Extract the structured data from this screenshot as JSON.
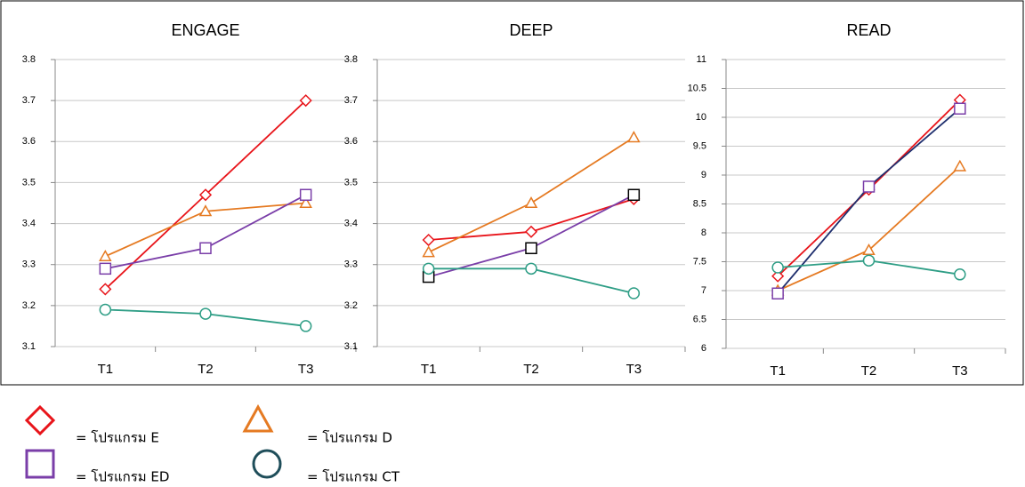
{
  "chart_data": [
    {
      "type": "line",
      "title": "ENGAGE",
      "categories": [
        "T1",
        "T2",
        "T3"
      ],
      "ylim": [
        3.1,
        3.8
      ],
      "yticks": [
        3.1,
        3.2,
        3.3,
        3.4,
        3.5,
        3.6,
        3.7,
        3.8
      ],
      "grid": true,
      "series": [
        {
          "marker": "diamond",
          "color": "#e8141a",
          "values": [
            3.24,
            3.47,
            3.7
          ]
        },
        {
          "marker": "triangle",
          "color": "#e57a22",
          "values": [
            3.32,
            3.43,
            3.45
          ]
        },
        {
          "marker": "square",
          "color": "#7a3ea8",
          "values": [
            3.29,
            3.34,
            3.47
          ]
        },
        {
          "marker": "circle",
          "color": "#2f9e86",
          "values": [
            3.19,
            3.18,
            3.15
          ]
        }
      ]
    },
    {
      "type": "line",
      "title": "DEEP",
      "categories": [
        "T1",
        "T2",
        "T3"
      ],
      "ylim": [
        3.1,
        3.8
      ],
      "yticks": [
        3.1,
        3.2,
        3.3,
        3.4,
        3.5,
        3.6,
        3.7,
        3.8
      ],
      "grid": true,
      "series": [
        {
          "marker": "diamond",
          "color": "#e8141a",
          "values": [
            3.36,
            3.38,
            3.46
          ]
        },
        {
          "marker": "triangle",
          "color": "#e57a22",
          "values": [
            3.33,
            3.45,
            3.61
          ]
        },
        {
          "marker": "square",
          "color": "#7a3ea8",
          "marker_color": "#000000",
          "values": [
            3.27,
            3.34,
            3.47
          ]
        },
        {
          "marker": "circle",
          "color": "#2f9e86",
          "values": [
            3.29,
            3.29,
            3.23
          ]
        }
      ]
    },
    {
      "type": "line",
      "title": "READ",
      "categories": [
        "T1",
        "T2",
        "T3"
      ],
      "ylim": [
        6,
        11
      ],
      "yticks": [
        6,
        6.5,
        7,
        7.5,
        8,
        8.5,
        9,
        9.5,
        10,
        10.5,
        11
      ],
      "grid": true,
      "series": [
        {
          "marker": "diamond",
          "color": "#e8141a",
          "values": [
            7.25,
            8.75,
            10.3
          ]
        },
        {
          "marker": "triangle",
          "color": "#e57a22",
          "values": [
            7.0,
            7.7,
            9.15
          ]
        },
        {
          "marker": "square",
          "color": "#1f2f6e",
          "marker_color": "#7a3ea8",
          "values": [
            6.95,
            8.8,
            10.15
          ]
        },
        {
          "marker": "circle",
          "color": "#2f9e86",
          "values": [
            7.4,
            7.52,
            7.28
          ]
        }
      ]
    }
  ],
  "legend": [
    {
      "label": "= โปรแกรม E",
      "marker": "diamond",
      "color": "#e8141a"
    },
    {
      "label": "= โปรแกรม D",
      "marker": "triangle",
      "color": "#e57a22"
    },
    {
      "label": "= โปรแกรม ED",
      "marker": "square",
      "color": "#7a3ea8"
    },
    {
      "label": "= โปรแกรม CT",
      "marker": "circle",
      "color": "#1f4e5a"
    }
  ]
}
